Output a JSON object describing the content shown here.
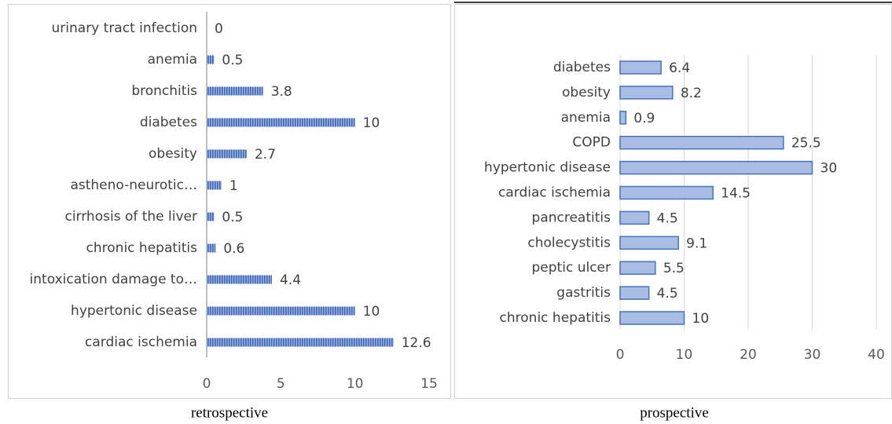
{
  "chart_data": [
    {
      "type": "bar",
      "orientation": "horizontal",
      "title": "retrospective",
      "categories": [
        "urinary tract infection",
        "anemia",
        "bronchitis",
        "diabetes",
        "obesity",
        "astheno-neurotic…",
        "cirrhosis of the liver",
        "chronic hepatitis",
        "intoxication damage to…",
        "hypertonic disease",
        "cardiac ischemia"
      ],
      "values": [
        0,
        0.5,
        3.8,
        10,
        2.7,
        1,
        0.5,
        0.6,
        4.4,
        10,
        12.6
      ],
      "color": "#4472c4",
      "pattern": "striped",
      "xlim": [
        0,
        15
      ],
      "xticks": [
        0,
        5,
        10,
        15
      ],
      "grid": false
    },
    {
      "type": "bar",
      "orientation": "horizontal",
      "title": "prospective",
      "categories": [
        "diabetes",
        "obesity",
        "anemia",
        "COPD",
        "hypertonic disease",
        "cardiac ischemia",
        "pancreatitis",
        "cholecystitis",
        "peptic ulcer",
        "gastritis",
        "chronic hepatitis"
      ],
      "values": [
        6.4,
        8.2,
        0.9,
        25.5,
        30,
        14.5,
        4.5,
        9.1,
        5.5,
        4.5,
        10
      ],
      "color": "#a9bce3",
      "edge_color": "#4472c4",
      "xlim": [
        0,
        40
      ],
      "xticks": [
        0,
        10,
        20,
        30,
        40
      ],
      "grid": true
    }
  ]
}
